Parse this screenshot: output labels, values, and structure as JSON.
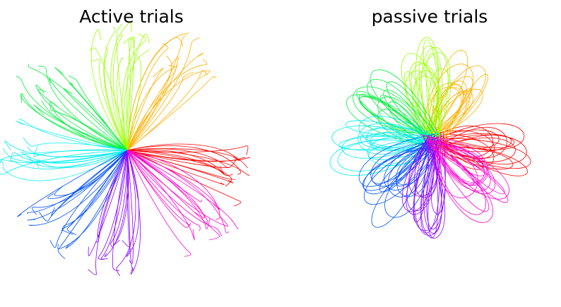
{
  "chart_data": [
    {
      "type": "trajectory",
      "title": "Active trials",
      "colors": [
        "#ff0000",
        "#ffb000",
        "#99ff00",
        "#00f03c",
        "#00f0f0",
        "#0050ff",
        "#8a00ff",
        "#ff00d0"
      ]
    },
    {
      "type": "loop",
      "title": "passive trials",
      "colors": [
        "#ff0000",
        "#ffb000",
        "#99ff00",
        "#00f03c",
        "#00f0f0",
        "#0050ff",
        "#8a00ff",
        "#ff00d0"
      ]
    }
  ]
}
